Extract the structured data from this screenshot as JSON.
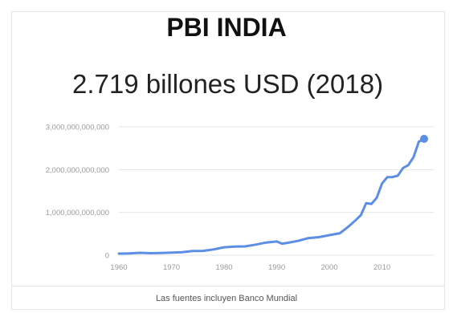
{
  "card": {
    "title": "PBI INDIA",
    "headline": "2.719 billones USD (2018)",
    "source": "Las fuentes incluyen Banco Mundial"
  },
  "colors": {
    "line": "#5c8ee6",
    "grid": "#e6e6e6",
    "tick": "#9a9a9a"
  },
  "chart_data": {
    "type": "line",
    "title": "PBI INDIA",
    "subtitle": "2.719 billones USD (2018)",
    "xlabel": "",
    "ylabel": "",
    "xlim": [
      1960,
      2018
    ],
    "ylim": [
      0,
      3000000000000
    ],
    "grid": true,
    "legend": "none",
    "y_ticks": [
      {
        "value": 0,
        "label": "0"
      },
      {
        "value": 1000000000000,
        "label": "1,000,000,000,000"
      },
      {
        "value": 2000000000000,
        "label": "2,000,000,000,000"
      },
      {
        "value": 3000000000000,
        "label": "3,000,000,000,000"
      }
    ],
    "x_ticks": [
      {
        "value": 1960,
        "label": "1960"
      },
      {
        "value": 1970,
        "label": "1970"
      },
      {
        "value": 1980,
        "label": "1980"
      },
      {
        "value": 1990,
        "label": "1990"
      },
      {
        "value": 2000,
        "label": "2000"
      },
      {
        "value": 2010,
        "label": "2010"
      }
    ],
    "series": [
      {
        "x": [
          1960,
          1962,
          1964,
          1966,
          1968,
          1970,
          1972,
          1974,
          1976,
          1978,
          1980,
          1982,
          1984,
          1986,
          1988,
          1990,
          1991,
          1992,
          1994,
          1996,
          1998,
          2000,
          2002,
          2003,
          2004,
          2005,
          2006,
          2007,
          2008,
          2009,
          2010,
          2011,
          2012,
          2013,
          2014,
          2015,
          2016,
          2017,
          2018
        ],
        "y": [
          37000000000,
          42000000000,
          56000000000,
          46000000000,
          53000000000,
          62000000000,
          71000000000,
          99000000000,
          102000000000,
          135000000000,
          186000000000,
          200000000000,
          206000000000,
          248000000000,
          296000000000,
          321000000000,
          270000000000,
          288000000000,
          333000000000,
          399000000000,
          421000000000,
          468000000000,
          514000000000,
          607000000000,
          709000000000,
          820000000000,
          940000000000,
          1216000000000,
          1198000000000,
          1341000000000,
          1675000000000,
          1823000000000,
          1827000000000,
          1856000000000,
          2039000000000,
          2103000000000,
          2294000000000,
          2651000000000,
          2719000000000
        ]
      }
    ],
    "highlight_point": {
      "x": 2018,
      "y": 2719000000000
    }
  }
}
